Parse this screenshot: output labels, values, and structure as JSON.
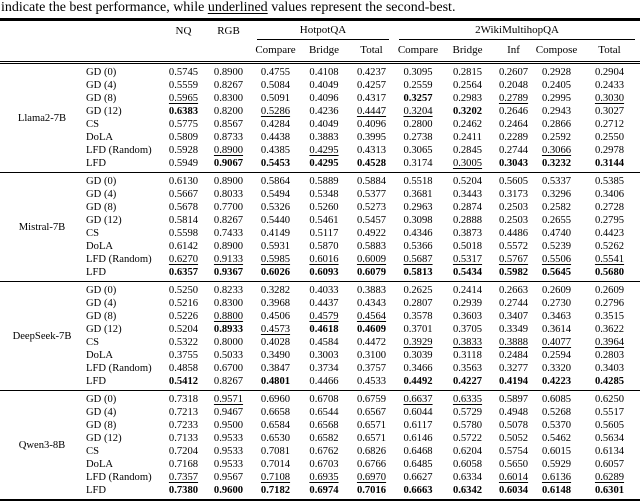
{
  "caption": {
    "before": "indicate the best performance, while ",
    "underlined": "underlined",
    "after": " values represent the second-best."
  },
  "table": {
    "headers": {
      "nq": "NQ",
      "rgb": "RGB",
      "hotpotqa": "HotpotQA",
      "wiki": "2WikiMultihopQA",
      "sub": [
        "Compare",
        "Bridge",
        "Total",
        "Compare",
        "Bridge",
        "Inf",
        "Compose",
        "Total"
      ]
    },
    "groups": [
      {
        "model": "Llama2-7B",
        "rows": [
          {
            "method": "GD (0)",
            "values": [
              "0.5745",
              "0.8900",
              "0.4755",
              "0.4108",
              "0.4237",
              "0.3095",
              "0.2815",
              "0.2607",
              "0.2928",
              "0.2904"
            ]
          },
          {
            "method": "GD (4)",
            "values": [
              "0.5559",
              "0.8267",
              "0.5084",
              "0.4049",
              "0.4257",
              "0.2559",
              "0.2564",
              "0.2048",
              "0.2405",
              "0.2433"
            ]
          },
          {
            "method": "GD (8)",
            "values": [
              "0.5965",
              "0.8300",
              "0.5091",
              "0.4096",
              "0.4317",
              "0.3257",
              "0.2983",
              "0.2789",
              "0.2995",
              "0.3030"
            ],
            "styles": [
              "u",
              "",
              "",
              "",
              "",
              "b",
              "",
              "u",
              "",
              "u"
            ]
          },
          {
            "method": "GD (12)",
            "values": [
              "0.6383",
              "0.8200",
              "0.5286",
              "0.4236",
              "0.4447",
              "0.3204",
              "0.3202",
              "0.2646",
              "0.2943",
              "0.3027"
            ],
            "styles": [
              "b",
              "",
              "u",
              "",
              "u",
              "u",
              "b",
              "",
              "",
              ""
            ]
          },
          {
            "method": "CS",
            "values": [
              "0.5775",
              "0.8567",
              "0.4284",
              "0.4049",
              "0.4096",
              "0.2800",
              "0.2462",
              "0.2464",
              "0.2866",
              "0.2712"
            ]
          },
          {
            "method": "DoLA",
            "values": [
              "0.5809",
              "0.8733",
              "0.4438",
              "0.3883",
              "0.3995",
              "0.2738",
              "0.2411",
              "0.2289",
              "0.2592",
              "0.2550"
            ]
          },
          {
            "method": "LFD (Random)",
            "values": [
              "0.5928",
              "0.8900",
              "0.4385",
              "0.4295",
              "0.4313",
              "0.3065",
              "0.2845",
              "0.2744",
              "0.3066",
              "0.2978"
            ],
            "styles": [
              "",
              "u",
              "",
              "u",
              "",
              "",
              "",
              "",
              "u",
              ""
            ]
          },
          {
            "method": "LFD",
            "values": [
              "0.5949",
              "0.9067",
              "0.5453",
              "0.4295",
              "0.4528",
              "0.3174",
              "0.3005",
              "0.3043",
              "0.3232",
              "0.3144"
            ],
            "styles": [
              "",
              "b",
              "b",
              "b",
              "b",
              "",
              "u",
              "b",
              "b",
              "b"
            ]
          }
        ]
      },
      {
        "model": "Mistral-7B",
        "rows": [
          {
            "method": "GD (0)",
            "values": [
              "0.6130",
              "0.8900",
              "0.5864",
              "0.5889",
              "0.5884",
              "0.5518",
              "0.5204",
              "0.5605",
              "0.5337",
              "0.5385"
            ]
          },
          {
            "method": "GD (4)",
            "values": [
              "0.5667",
              "0.8033",
              "0.5494",
              "0.5348",
              "0.5377",
              "0.3681",
              "0.3443",
              "0.3173",
              "0.3296",
              "0.3406"
            ]
          },
          {
            "method": "GD (8)",
            "values": [
              "0.5678",
              "0.7700",
              "0.5326",
              "0.5260",
              "0.5273",
              "0.2963",
              "0.2874",
              "0.2503",
              "0.2582",
              "0.2728"
            ]
          },
          {
            "method": "GD (12)",
            "values": [
              "0.5814",
              "0.8267",
              "0.5440",
              "0.5461",
              "0.5457",
              "0.3098",
              "0.2888",
              "0.2503",
              "0.2655",
              "0.2795"
            ]
          },
          {
            "method": "CS",
            "values": [
              "0.5598",
              "0.7433",
              "0.4149",
              "0.5117",
              "0.4922",
              "0.4346",
              "0.3873",
              "0.4486",
              "0.4740",
              "0.4423"
            ]
          },
          {
            "method": "DoLA",
            "values": [
              "0.6142",
              "0.8900",
              "0.5931",
              "0.5870",
              "0.5883",
              "0.5366",
              "0.5018",
              "0.5572",
              "0.5239",
              "0.5262"
            ]
          },
          {
            "method": "LFD (Random)",
            "values": [
              "0.6270",
              "0.9133",
              "0.5985",
              "0.6016",
              "0.6009",
              "0.5687",
              "0.5317",
              "0.5767",
              "0.5506",
              "0.5541"
            ],
            "styles": [
              "u",
              "u",
              "u",
              "u",
              "u",
              "u",
              "u",
              "u",
              "u",
              "u"
            ]
          },
          {
            "method": "LFD",
            "values": [
              "0.6357",
              "0.9367",
              "0.6026",
              "0.6093",
              "0.6079",
              "0.5813",
              "0.5434",
              "0.5982",
              "0.5645",
              "0.5680"
            ],
            "styles": [
              "b",
              "b",
              "b",
              "b",
              "b",
              "b",
              "b",
              "b",
              "b",
              "b"
            ]
          }
        ]
      },
      {
        "model": "DeepSeek-7B",
        "rows": [
          {
            "method": "GD (0)",
            "values": [
              "0.5250",
              "0.8233",
              "0.3282",
              "0.4033",
              "0.3883",
              "0.2625",
              "0.2414",
              "0.2663",
              "0.2609",
              "0.2609"
            ]
          },
          {
            "method": "GD (4)",
            "values": [
              "0.5216",
              "0.8300",
              "0.3968",
              "0.4437",
              "0.4343",
              "0.2807",
              "0.2939",
              "0.2744",
              "0.2730",
              "0.2796"
            ]
          },
          {
            "method": "GD (8)",
            "values": [
              "0.5226",
              "0.8800",
              "0.4506",
              "0.4579",
              "0.4564",
              "0.3578",
              "0.3603",
              "0.3407",
              "0.3463",
              "0.3515"
            ],
            "styles": [
              "",
              "u",
              "",
              "u",
              "u",
              "",
              "",
              "",
              "",
              ""
            ]
          },
          {
            "method": "GD (12)",
            "values": [
              "0.5204",
              "0.8933",
              "0.4573",
              "0.4618",
              "0.4609",
              "0.3701",
              "0.3705",
              "0.3349",
              "0.3614",
              "0.3622"
            ],
            "styles": [
              "",
              "b",
              "u",
              "b",
              "b",
              "",
              "",
              "",
              "",
              ""
            ]
          },
          {
            "method": "CS",
            "values": [
              "0.5322",
              "0.8000",
              "0.4028",
              "0.4584",
              "0.4472",
              "0.3929",
              "0.3833",
              "0.3888",
              "0.4077",
              "0.3964"
            ],
            "styles": [
              "",
              "",
              "",
              "",
              "",
              "u",
              "u",
              "u",
              "u",
              "u"
            ]
          },
          {
            "method": "DoLA",
            "values": [
              "0.3755",
              "0.5033",
              "0.3490",
              "0.3003",
              "0.3100",
              "0.3039",
              "0.3118",
              "0.2484",
              "0.2594",
              "0.2803"
            ]
          },
          {
            "method": "LFD (Random)",
            "values": [
              "0.4858",
              "0.6700",
              "0.3847",
              "0.3734",
              "0.3757",
              "0.3466",
              "0.3563",
              "0.3277",
              "0.3320",
              "0.3403"
            ]
          },
          {
            "method": "LFD",
            "values": [
              "0.5412",
              "0.8267",
              "0.4801",
              "0.4466",
              "0.4533",
              "0.4492",
              "0.4227",
              "0.4194",
              "0.4223",
              "0.4285"
            ],
            "styles": [
              "b",
              "",
              "b",
              "",
              "",
              "b",
              "b",
              "b",
              "b",
              "b"
            ]
          }
        ]
      },
      {
        "model": "Qwen3-8B",
        "rows": [
          {
            "method": "GD (0)",
            "values": [
              "0.7318",
              "0.9571",
              "0.6960",
              "0.6708",
              "0.6759",
              "0.6637",
              "0.6335",
              "0.5897",
              "0.6085",
              "0.6250"
            ],
            "styles": [
              "",
              "u",
              "",
              "",
              "",
              "u",
              "u",
              "",
              "",
              ""
            ]
          },
          {
            "method": "GD (4)",
            "values": [
              "0.7213",
              "0.9467",
              "0.6658",
              "0.6544",
              "0.6567",
              "0.6044",
              "0.5729",
              "0.4948",
              "0.5268",
              "0.5517"
            ]
          },
          {
            "method": "GD (8)",
            "values": [
              "0.7233",
              "0.9500",
              "0.6584",
              "0.6568",
              "0.6571",
              "0.6117",
              "0.5780",
              "0.5078",
              "0.5370",
              "0.5605"
            ]
          },
          {
            "method": "GD (12)",
            "values": [
              "0.7133",
              "0.9533",
              "0.6530",
              "0.6582",
              "0.6571",
              "0.6146",
              "0.5722",
              "0.5052",
              "0.5462",
              "0.5634"
            ]
          },
          {
            "method": "CS",
            "values": [
              "0.7204",
              "0.9533",
              "0.7081",
              "0.6762",
              "0.6826",
              "0.6468",
              "0.6204",
              "0.5754",
              "0.6015",
              "0.6134"
            ]
          },
          {
            "method": "DoLA",
            "values": [
              "0.7168",
              "0.9533",
              "0.7014",
              "0.6703",
              "0.6766",
              "0.6485",
              "0.6058",
              "0.5650",
              "0.5929",
              "0.6057"
            ]
          },
          {
            "method": "LFD (Random)",
            "values": [
              "0.7357",
              "0.9567",
              "0.7108",
              "0.6935",
              "0.6970",
              "0.6627",
              "0.6334",
              "0.6014",
              "0.6136",
              "0.6289"
            ],
            "styles": [
              "u",
              "",
              "u",
              "u",
              "u",
              "",
              "",
              "u",
              "u",
              "u"
            ]
          },
          {
            "method": "LFD",
            "values": [
              "0.7380",
              "0.9600",
              "0.7182",
              "0.6974",
              "0.7016",
              "0.6663",
              "0.6342",
              "0.6034",
              "0.6148",
              "0.6301"
            ],
            "styles": [
              "b",
              "b",
              "b",
              "b",
              "b",
              "b",
              "b",
              "b",
              "b",
              "b"
            ]
          }
        ]
      }
    ]
  }
}
